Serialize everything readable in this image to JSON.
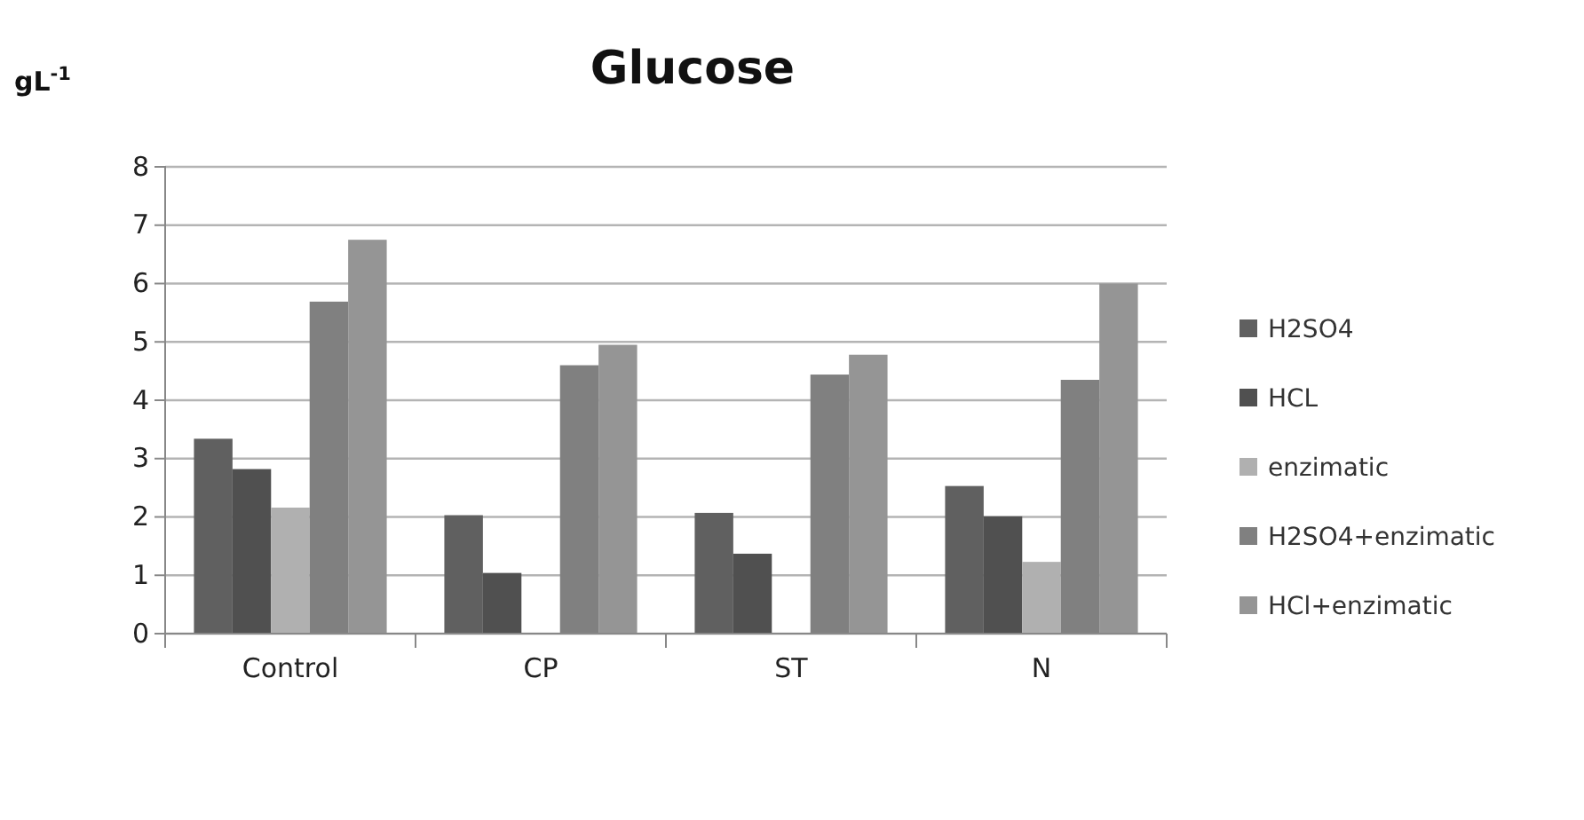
{
  "chart_data": {
    "type": "bar",
    "title": "Glucose",
    "ylabel": "gL$^{-1}$",
    "categories": [
      "Control",
      "CP",
      "ST",
      "N"
    ],
    "series": [
      {
        "name": "H2SO4",
        "color": "#606060",
        "values": [
          3.34,
          2.03,
          2.07,
          2.53
        ]
      },
      {
        "name": "HCL",
        "color": "#505050",
        "values": [
          2.82,
          1.04,
          1.37,
          2.01
        ]
      },
      {
        "name": "enzimatic",
        "color": "#b0b0b0",
        "values": [
          2.16,
          null,
          null,
          1.23
        ]
      },
      {
        "name": "H2SO4+enzimatic",
        "color": "#808080",
        "values": [
          5.69,
          4.6,
          4.44,
          4.35
        ]
      },
      {
        "name": "HCl+enzimatic",
        "color": "#959595",
        "values": [
          6.75,
          4.95,
          4.78,
          6.0
        ]
      }
    ],
    "ylim": [
      0,
      8
    ],
    "yticks": [
      0,
      1,
      2,
      3,
      4,
      5,
      6,
      7,
      8
    ],
    "grid": "y",
    "legend": "right"
  }
}
